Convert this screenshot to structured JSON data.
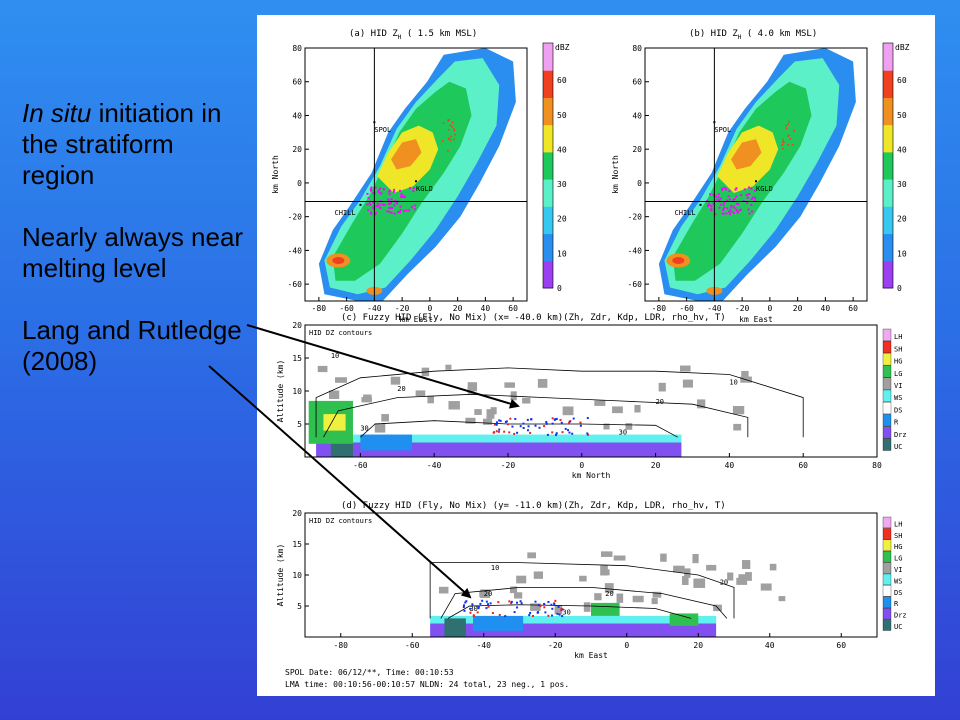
{
  "left_text": {
    "line1_italic": "In situ",
    "line1_rest": " initiation in the stratiform region",
    "line2": "Nearly always near melting level",
    "line3": "Lang and Rutledge (2008)"
  },
  "colors": {
    "background_top": "#2f8ff0",
    "background_bottom": "#3340d4",
    "arrow": "#000000",
    "lightning_source": "#ff00ff"
  },
  "chart_data": [
    {
      "type": "heatmap",
      "title_prefix": "(a) HID Z",
      "title_sub": "H",
      "title_suffix": " ( 1.5 km MSL)",
      "xlabel": "km East",
      "ylabel": "km North",
      "xlim": [
        -90,
        70
      ],
      "ylim": [
        -70,
        80
      ],
      "xticks": [
        -80,
        -60,
        -40,
        -20,
        0,
        20,
        40,
        60
      ],
      "yticks": [
        -60,
        -40,
        -20,
        0,
        20,
        40,
        60,
        80
      ],
      "crosshair": {
        "x": -40,
        "y": -11
      },
      "labels": [
        {
          "text": "SPOL",
          "x": -40,
          "y": 36
        },
        {
          "text": "KGLD",
          "x": -10,
          "y": 1
        },
        {
          "text": "CHILL",
          "x": -50,
          "y": -13
        }
      ],
      "colorbar": {
        "unit": "dBZ",
        "ticks": [
          0,
          10,
          20,
          30,
          40,
          50,
          60
        ],
        "colors": [
          "#9b3ff0",
          "#2a8ef0",
          "#36c8f0",
          "#5cf0c8",
          "#1ec85a",
          "#f0e628",
          "#f09020",
          "#f04020",
          "#f0a0f0"
        ]
      }
    },
    {
      "type": "heatmap",
      "title_prefix": "(b) HID Z",
      "title_sub": "H",
      "title_suffix": " ( 4.0 km MSL)",
      "xlabel": "km East",
      "ylabel": "km North",
      "xlim": [
        -90,
        70
      ],
      "ylim": [
        -70,
        80
      ],
      "xticks": [
        -80,
        -60,
        -40,
        -20,
        0,
        20,
        40,
        60
      ],
      "yticks": [
        -60,
        -40,
        -20,
        0,
        20,
        40,
        60,
        80
      ],
      "crosshair": {
        "x": -40,
        "y": -11
      },
      "labels": [
        {
          "text": "SPOL",
          "x": -40,
          "y": 36
        },
        {
          "text": "KGLD",
          "x": -10,
          "y": 1
        },
        {
          "text": "CHILL",
          "x": -50,
          "y": -13
        }
      ],
      "colorbar": {
        "unit": "dBZ",
        "ticks": [
          0,
          10,
          20,
          30,
          40,
          50,
          60
        ],
        "colors": [
          "#9b3ff0",
          "#2a8ef0",
          "#36c8f0",
          "#5cf0c8",
          "#1ec85a",
          "#f0e628",
          "#f09020",
          "#f04020",
          "#f0a0f0"
        ]
      }
    },
    {
      "type": "heatmap",
      "title": "(c) Fuzzy HID (Fly, No Mix) (x= -40.0 km)(Zh, Zdr, Kdp, LDR, rho_hv, T)",
      "inset_label": "HID DZ contours",
      "xlabel": "km North",
      "ylabel": "Altitude (km)",
      "xlim": [
        -75,
        80
      ],
      "ylim": [
        0,
        20
      ],
      "xticks": [
        -60,
        -40,
        -20,
        0,
        20,
        40,
        60,
        80
      ],
      "yticks": [
        5,
        10,
        15,
        20
      ],
      "contour_labels": [
        "10",
        "10",
        "20",
        "20",
        "30",
        "30"
      ],
      "legend": [
        {
          "label": "LH",
          "color": "#f0a8f0"
        },
        {
          "label": "SH",
          "color": "#f03020"
        },
        {
          "label": "HG",
          "color": "#f0f040"
        },
        {
          "label": "LG",
          "color": "#30c050"
        },
        {
          "label": "VI",
          "color": "#a0a0a0"
        },
        {
          "label": "WS",
          "color": "#60f0f0"
        },
        {
          "label": "DS",
          "color": "#ffffff"
        },
        {
          "label": "R",
          "color": "#2090f0"
        },
        {
          "label": "Drz",
          "color": "#8050f0"
        },
        {
          "label": "UC",
          "color": "#307070"
        }
      ]
    },
    {
      "type": "heatmap",
      "title": "(d) Fuzzy HID (Fly, No Mix) (y= -11.0 km)(Zh, Zdr, Kdp, LDR, rho_hv, T)",
      "inset_label": "HID DZ contours",
      "xlabel": "km East",
      "ylabel": "Altitude (km)",
      "xlim": [
        -90,
        70
      ],
      "ylim": [
        0,
        20
      ],
      "xticks": [
        -80,
        -60,
        -40,
        -20,
        0,
        20,
        40,
        60
      ],
      "yticks": [
        5,
        10,
        15,
        20
      ],
      "contour_labels": [
        "10",
        "20",
        "20",
        "30",
        "20",
        "30"
      ],
      "legend": [
        {
          "label": "LH",
          "color": "#f0a8f0"
        },
        {
          "label": "SH",
          "color": "#f03020"
        },
        {
          "label": "HG",
          "color": "#f0f040"
        },
        {
          "label": "LG",
          "color": "#30c050"
        },
        {
          "label": "VI",
          "color": "#a0a0a0"
        },
        {
          "label": "WS",
          "color": "#60f0f0"
        },
        {
          "label": "DS",
          "color": "#ffffff"
        },
        {
          "label": "R",
          "color": "#2090f0"
        },
        {
          "label": "Drz",
          "color": "#8050f0"
        },
        {
          "label": "UC",
          "color": "#307070"
        }
      ]
    }
  ],
  "footer": {
    "line1": "SPOL     Date: 06/12/**, Time:  00:10:53",
    "line2": "LMA time: 00:10:56-00:10:57 NLDN: 24 total, 23 neg., 1 pos."
  }
}
